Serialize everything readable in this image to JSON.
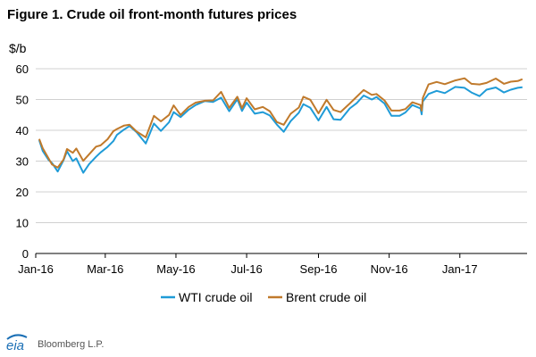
{
  "title": "Figure 1. Crude oil front-month futures prices",
  "source": "Bloomberg L.P.",
  "logo_text": "eia",
  "colors": {
    "wti": "#1f9bd7",
    "brent": "#c07a2c",
    "axis": "#000000",
    "grid": "#d0d0d0",
    "logo": "#1a6fb5"
  },
  "chart_data": {
    "type": "line",
    "ylabel": "$/b",
    "ylim": [
      0,
      60
    ],
    "yticks": [
      0,
      10,
      20,
      30,
      40,
      50,
      60
    ],
    "xlim": [
      "2016-01-01",
      "2017-02-28"
    ],
    "xtick_labels": [
      "Jan-16",
      "Mar-16",
      "May-16",
      "Jul-16",
      "Sep-16",
      "Nov-16",
      "Jan-17"
    ],
    "xtick_dates": [
      "2016-01-01",
      "2016-03-01",
      "2016-05-01",
      "2016-07-01",
      "2016-09-01",
      "2016-11-01",
      "2017-01-01"
    ],
    "grid": "horizontal",
    "legend_position": "bottom",
    "series": [
      {
        "name": "WTI crude oil",
        "points": [
          [
            "2016-01-04",
            36.8
          ],
          [
            "2016-01-07",
            33.3
          ],
          [
            "2016-01-12",
            30.4
          ],
          [
            "2016-01-15",
            29.4
          ],
          [
            "2016-01-20",
            26.6
          ],
          [
            "2016-01-25",
            30.3
          ],
          [
            "2016-01-28",
            33.2
          ],
          [
            "2016-02-02",
            30.0
          ],
          [
            "2016-02-05",
            30.9
          ],
          [
            "2016-02-11",
            26.2
          ],
          [
            "2016-02-16",
            29.0
          ],
          [
            "2016-02-22",
            31.4
          ],
          [
            "2016-02-26",
            32.8
          ],
          [
            "2016-03-03",
            34.6
          ],
          [
            "2016-03-08",
            36.5
          ],
          [
            "2016-03-11",
            38.5
          ],
          [
            "2016-03-17",
            40.2
          ],
          [
            "2016-03-22",
            41.4
          ],
          [
            "2016-03-28",
            39.4
          ],
          [
            "2016-04-05",
            35.7
          ],
          [
            "2016-04-12",
            42.2
          ],
          [
            "2016-04-18",
            39.8
          ],
          [
            "2016-04-25",
            42.6
          ],
          [
            "2016-04-29",
            45.9
          ],
          [
            "2016-05-05",
            44.3
          ],
          [
            "2016-05-12",
            46.7
          ],
          [
            "2016-05-18",
            48.2
          ],
          [
            "2016-05-26",
            49.5
          ],
          [
            "2016-06-02",
            49.2
          ],
          [
            "2016-06-09",
            50.6
          ],
          [
            "2016-06-16",
            46.2
          ],
          [
            "2016-06-23",
            50.1
          ],
          [
            "2016-06-27",
            46.3
          ],
          [
            "2016-07-01",
            49.0
          ],
          [
            "2016-07-08",
            45.4
          ],
          [
            "2016-07-15",
            45.9
          ],
          [
            "2016-07-21",
            44.8
          ],
          [
            "2016-07-27",
            41.9
          ],
          [
            "2016-08-02",
            39.5
          ],
          [
            "2016-08-08",
            43.0
          ],
          [
            "2016-08-15",
            45.7
          ],
          [
            "2016-08-19",
            48.5
          ],
          [
            "2016-08-25",
            47.3
          ],
          [
            "2016-09-01",
            43.2
          ],
          [
            "2016-09-08",
            47.6
          ],
          [
            "2016-09-14",
            43.6
          ],
          [
            "2016-09-20",
            43.4
          ],
          [
            "2016-09-28",
            47.1
          ],
          [
            "2016-10-04",
            48.8
          ],
          [
            "2016-10-10",
            51.3
          ],
          [
            "2016-10-17",
            50.0
          ],
          [
            "2016-10-21",
            50.8
          ],
          [
            "2016-10-28",
            48.7
          ],
          [
            "2016-11-03",
            44.7
          ],
          [
            "2016-11-10",
            44.7
          ],
          [
            "2016-11-15",
            45.8
          ],
          [
            "2016-11-21",
            48.2
          ],
          [
            "2016-11-28",
            47.1
          ],
          [
            "2016-11-29",
            45.2
          ],
          [
            "2016-11-30",
            49.4
          ],
          [
            "2016-12-05",
            51.8
          ],
          [
            "2016-12-12",
            52.8
          ],
          [
            "2016-12-19",
            52.1
          ],
          [
            "2016-12-28",
            54.1
          ],
          [
            "2017-01-05",
            53.8
          ],
          [
            "2017-01-11",
            52.3
          ],
          [
            "2017-01-18",
            51.1
          ],
          [
            "2017-01-24",
            53.2
          ],
          [
            "2017-02-01",
            53.9
          ],
          [
            "2017-02-08",
            52.3
          ],
          [
            "2017-02-14",
            53.2
          ],
          [
            "2017-02-20",
            53.8
          ],
          [
            "2017-02-24",
            54.0
          ]
        ]
      },
      {
        "name": "Brent crude oil",
        "points": [
          [
            "2016-01-04",
            37.2
          ],
          [
            "2016-01-07",
            34.2
          ],
          [
            "2016-01-12",
            30.9
          ],
          [
            "2016-01-15",
            28.9
          ],
          [
            "2016-01-20",
            27.9
          ],
          [
            "2016-01-25",
            30.5
          ],
          [
            "2016-01-28",
            33.9
          ],
          [
            "2016-02-02",
            32.7
          ],
          [
            "2016-02-05",
            34.1
          ],
          [
            "2016-02-11",
            30.1
          ],
          [
            "2016-02-16",
            32.2
          ],
          [
            "2016-02-22",
            34.7
          ],
          [
            "2016-02-26",
            35.1
          ],
          [
            "2016-03-03",
            37.1
          ],
          [
            "2016-03-08",
            39.7
          ],
          [
            "2016-03-11",
            40.4
          ],
          [
            "2016-03-17",
            41.5
          ],
          [
            "2016-03-22",
            41.8
          ],
          [
            "2016-03-28",
            39.6
          ],
          [
            "2016-04-05",
            37.7
          ],
          [
            "2016-04-12",
            44.7
          ],
          [
            "2016-04-18",
            42.9
          ],
          [
            "2016-04-25",
            45.0
          ],
          [
            "2016-04-29",
            48.1
          ],
          [
            "2016-05-05",
            45.0
          ],
          [
            "2016-05-12",
            47.6
          ],
          [
            "2016-05-18",
            49.0
          ],
          [
            "2016-05-26",
            49.6
          ],
          [
            "2016-06-02",
            49.7
          ],
          [
            "2016-06-09",
            52.5
          ],
          [
            "2016-06-16",
            47.3
          ],
          [
            "2016-06-23",
            50.9
          ],
          [
            "2016-06-27",
            47.2
          ],
          [
            "2016-07-01",
            50.4
          ],
          [
            "2016-07-08",
            46.8
          ],
          [
            "2016-07-15",
            47.6
          ],
          [
            "2016-07-21",
            46.2
          ],
          [
            "2016-07-27",
            42.7
          ],
          [
            "2016-08-02",
            41.8
          ],
          [
            "2016-08-08",
            45.4
          ],
          [
            "2016-08-15",
            47.4
          ],
          [
            "2016-08-19",
            50.9
          ],
          [
            "2016-08-25",
            49.9
          ],
          [
            "2016-09-01",
            45.5
          ],
          [
            "2016-09-08",
            49.9
          ],
          [
            "2016-09-14",
            46.6
          ],
          [
            "2016-09-20",
            45.9
          ],
          [
            "2016-09-28",
            48.7
          ],
          [
            "2016-10-04",
            50.9
          ],
          [
            "2016-10-10",
            53.1
          ],
          [
            "2016-10-17",
            51.5
          ],
          [
            "2016-10-21",
            51.8
          ],
          [
            "2016-10-28",
            49.7
          ],
          [
            "2016-11-03",
            46.4
          ],
          [
            "2016-11-10",
            46.4
          ],
          [
            "2016-11-15",
            46.9
          ],
          [
            "2016-11-21",
            49.1
          ],
          [
            "2016-11-28",
            48.2
          ],
          [
            "2016-11-29",
            46.4
          ],
          [
            "2016-11-30",
            50.5
          ],
          [
            "2016-12-05",
            54.9
          ],
          [
            "2016-12-12",
            55.7
          ],
          [
            "2016-12-19",
            55.0
          ],
          [
            "2016-12-28",
            56.2
          ],
          [
            "2017-01-05",
            56.9
          ],
          [
            "2017-01-11",
            55.1
          ],
          [
            "2017-01-18",
            54.9
          ],
          [
            "2017-01-24",
            55.4
          ],
          [
            "2017-02-01",
            56.8
          ],
          [
            "2017-02-08",
            55.1
          ],
          [
            "2017-02-14",
            55.8
          ],
          [
            "2017-02-20",
            56.0
          ],
          [
            "2017-02-24",
            56.6
          ]
        ]
      }
    ]
  }
}
